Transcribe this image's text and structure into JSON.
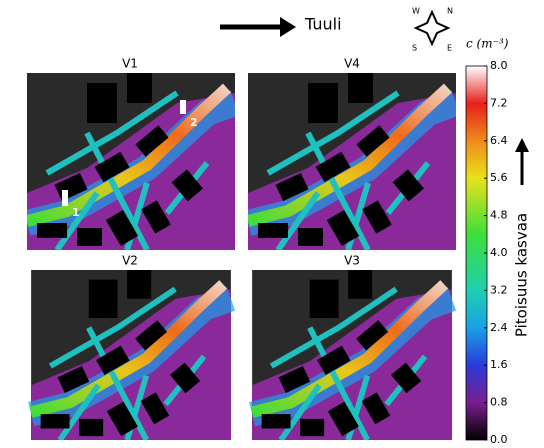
{
  "wind": {
    "label": "Tuuli"
  },
  "compass": {
    "n": "N",
    "e": "E",
    "s": "S",
    "w": "W"
  },
  "panels": [
    {
      "label": "V1",
      "markers": [
        "1",
        "2"
      ]
    },
    {
      "label": "V4"
    },
    {
      "label": "V2"
    },
    {
      "label": "V3"
    }
  ],
  "colorbar": {
    "title": "c (m⁻³)",
    "axis_label": "Pitoisuus kasvaa",
    "lim": [
      0,
      8
    ],
    "ticks": [
      {
        "value": 0,
        "label": "0.0"
      },
      {
        "value": 0.8,
        "label": "0.8"
      },
      {
        "value": 1.6,
        "label": "1.6"
      },
      {
        "value": 2.4,
        "label": "2.4"
      },
      {
        "value": 3.2,
        "label": "3.2"
      },
      {
        "value": 4,
        "label": "4.0"
      },
      {
        "value": 4.8,
        "label": "4.8"
      },
      {
        "value": 5.6,
        "label": "5.6"
      },
      {
        "value": 6.4,
        "label": "6.4"
      },
      {
        "value": 7.2,
        "label": "7.2"
      },
      {
        "value": 8,
        "label": "8.0"
      }
    ]
  }
}
